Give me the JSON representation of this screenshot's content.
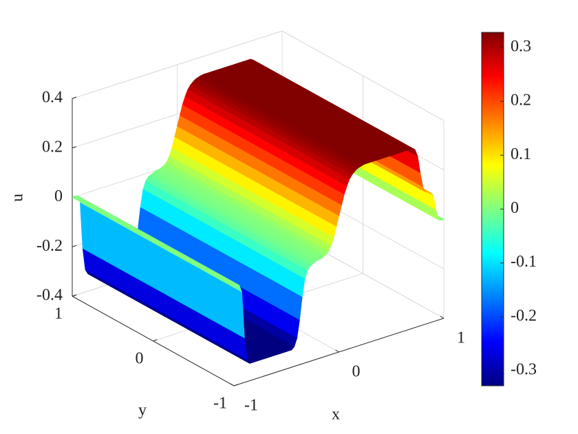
{
  "chart_data": {
    "type": "surface",
    "xlabel": "x",
    "ylabel": "y",
    "zlabel": "u",
    "xlim": [
      -1,
      1
    ],
    "ylim": [
      -1,
      1
    ],
    "zlim": [
      -0.4,
      0.4
    ],
    "xticks": [
      -1,
      0,
      1
    ],
    "yticks": [
      -1,
      0,
      1
    ],
    "zticks": [
      -0.4,
      -0.2,
      0,
      0.2,
      0.4
    ],
    "clim": [
      -0.328,
      0.328
    ],
    "cticks": [
      -0.3,
      -0.2,
      -0.1,
      0,
      0.1,
      0.2,
      0.3
    ],
    "colormap": "jet",
    "grid": true,
    "x": [
      -1,
      -0.975,
      -0.95,
      -0.925,
      -0.9,
      -0.875,
      -0.85,
      -0.825,
      -0.8,
      -0.775,
      -0.75,
      -0.725,
      -0.7,
      -0.675,
      -0.65,
      -0.625,
      -0.6,
      -0.575,
      -0.55,
      -0.525,
      -0.5,
      -0.475,
      -0.45,
      -0.425,
      -0.4,
      -0.375,
      -0.35,
      -0.325,
      -0.3,
      -0.275,
      -0.25,
      -0.225,
      -0.2,
      -0.175,
      -0.15,
      -0.125,
      -0.1,
      -0.075,
      -0.05,
      -0.025,
      0,
      0.025,
      0.05,
      0.075,
      0.1,
      0.125,
      0.15,
      0.175,
      0.2,
      0.225,
      0.25,
      0.275,
      0.3,
      0.325,
      0.35,
      0.375,
      0.4,
      0.425,
      0.45,
      0.475,
      0.5,
      0.525,
      0.55,
      0.575,
      0.6,
      0.625,
      0.65,
      0.675,
      0.7,
      0.725,
      0.75,
      0.775,
      0.8,
      0.825,
      0.85,
      0.875,
      0.9,
      0.925,
      0.95,
      0.975,
      1
    ],
    "values": [
      0,
      0,
      0,
      -0.03,
      -0.22,
      -0.31,
      -0.33,
      -0.33,
      -0.33,
      -0.33,
      -0.33,
      -0.33,
      -0.33,
      -0.33,
      -0.33,
      -0.33,
      -0.33,
      -0.33,
      -0.33,
      -0.33,
      -0.33,
      -0.33,
      -0.33,
      -0.32,
      -0.29,
      -0.22,
      -0.13,
      -0.06,
      -0.03,
      -0.015,
      -0.01,
      -0.005,
      0,
      0,
      0.005,
      0.01,
      0.02,
      0.04,
      0.07,
      0.11,
      0.15,
      0.19,
      0.23,
      0.26,
      0.285,
      0.3,
      0.31,
      0.318,
      0.322,
      0.325,
      0.327,
      0.327,
      0.327,
      0.327,
      0.327,
      0.327,
      0.327,
      0.327,
      0.327,
      0.327,
      0.327,
      0.327,
      0.327,
      0.327,
      0.327,
      0.327,
      0.327,
      0.327,
      0.327,
      0.32,
      0.29,
      0.22,
      0.16,
      0.135,
      0.13,
      0.125,
      0.11,
      0.05,
      0.005,
      0,
      0
    ]
  }
}
